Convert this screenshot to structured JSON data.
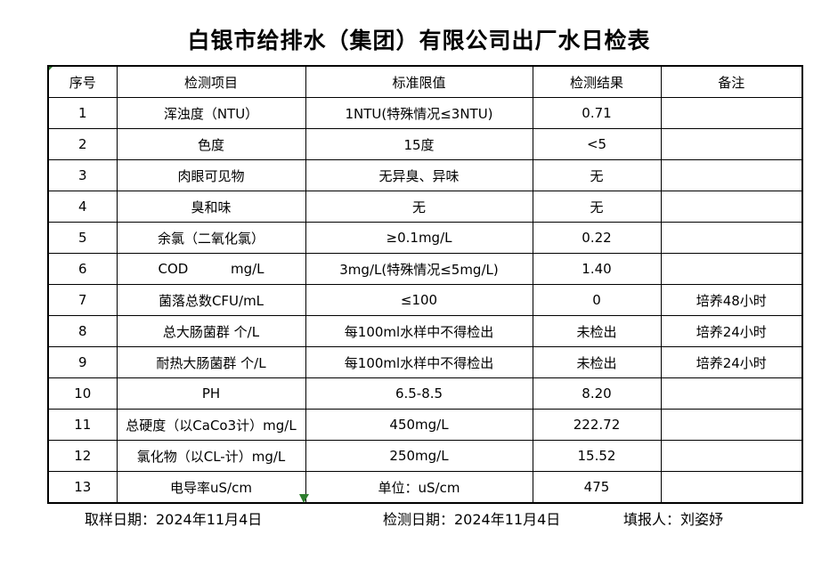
{
  "title": "白银市给排水（集团）有限公司出厂水日检表",
  "table": {
    "headers": [
      "序号",
      "检测项目",
      "标准限值",
      "检测结果",
      "备注"
    ],
    "rows": [
      [
        "1",
        "浑浊度（NTU）",
        "1NTU(特殊情况≤3NTU)",
        "0.71",
        ""
      ],
      [
        "2",
        "色度",
        "15度",
        "<5",
        ""
      ],
      [
        "3",
        "肉眼可见物",
        "无异臭、异味",
        "无",
        ""
      ],
      [
        "4",
        "臭和味",
        "无",
        "无",
        ""
      ],
      [
        "5",
        "余氯（二氧化氯）",
        "≥0.1mg/L",
        "0.22",
        ""
      ],
      [
        "6",
        "COD          mg/L",
        "3mg/L(特殊情况≤5mg/L)",
        "1.40",
        ""
      ],
      [
        "7",
        "菌落总数CFU/mL",
        "≤100",
        "0",
        "培养48小时"
      ],
      [
        "8",
        "总大肠菌群 个/L",
        "每100ml水样中不得检出",
        "未检出",
        "培养24小时"
      ],
      [
        "9",
        "耐热大肠菌群 个/L",
        "每100ml水样中不得检出",
        "未检出",
        "培养24小时"
      ],
      [
        "10",
        "PH",
        "6.5-8.5",
        "8.20",
        ""
      ],
      [
        "11",
        "总硬度（以CaCo3计）mg/L",
        "450mg/L",
        "222.72",
        ""
      ],
      [
        "12",
        "氯化物（以CL-计）mg/L",
        "250mg/L",
        "15.52",
        ""
      ],
      [
        "13",
        "电导率uS/cm",
        "单位：uS/cm",
        "475",
        ""
      ]
    ]
  },
  "footer": {
    "sampling_date": "取样日期：2024年11月4日",
    "test_date": "检测日期：2024年11月4日",
    "reporter": "填报人：刘姿妤"
  },
  "colors": {
    "marker_green": "#2d7d2d",
    "border": "#000000",
    "background": "#ffffff"
  }
}
